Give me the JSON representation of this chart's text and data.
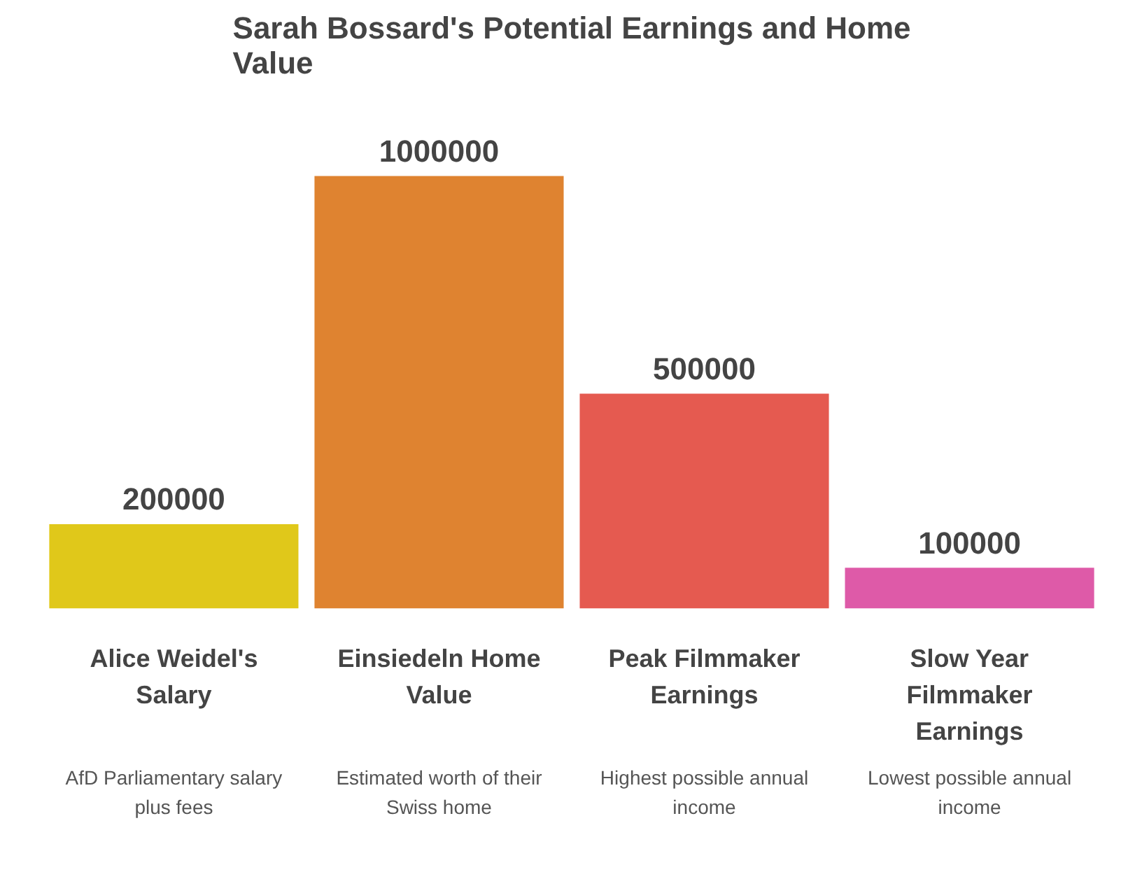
{
  "chart_data": {
    "type": "bar",
    "title": "Sarah Bossard's Potential Earnings and Home Value",
    "categories": [
      "Alice Weidel's Salary",
      "Einsiedeln Home Value",
      "Peak Filmmaker Earnings",
      "Slow Year Filmmaker Earnings"
    ],
    "values": [
      200000,
      1000000,
      500000,
      100000
    ],
    "colors": [
      "#e0c81a",
      "#df8330",
      "#e55a50",
      "#de5aa8"
    ],
    "data_labels": true,
    "annotations": [
      "AfD Parliamentary salary plus fees",
      "Estimated worth of their Swiss home",
      "Highest possible annual income",
      "Lowest possible annual income"
    ],
    "grid": false
  }
}
